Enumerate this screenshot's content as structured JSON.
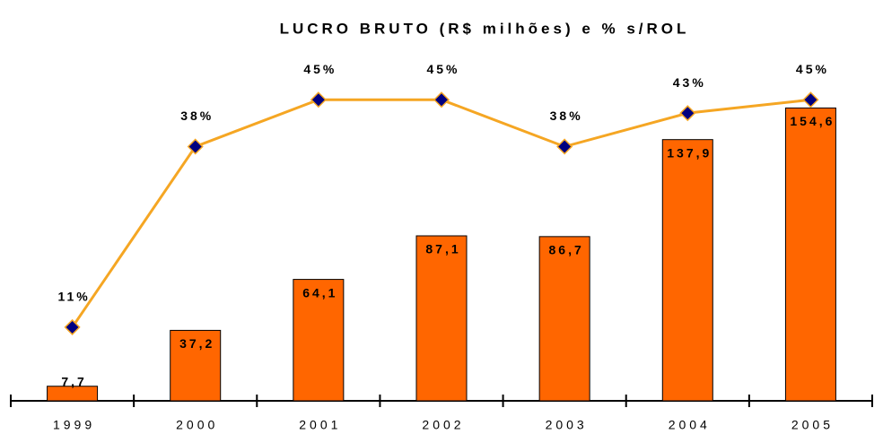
{
  "chart_data": {
    "type": "bar",
    "title": "LUCRO BRUTO (R$ milhões) e % s/ROL",
    "categories": [
      "1999",
      "2000",
      "2001",
      "2002",
      "2003",
      "2004",
      "2005"
    ],
    "ylim": [
      0,
      160
    ],
    "y2lim": [
      0,
      45.3
    ],
    "series": [
      {
        "name": "Lucro Bruto",
        "type": "bar",
        "color": "#ff6600",
        "values": [
          7.7,
          37.2,
          64.1,
          87.1,
          86.7,
          137.9,
          154.6
        ],
        "value_labels": [
          "7,7",
          "37,2",
          "64,1",
          "87,1",
          "86,7",
          "137,9",
          "154,6"
        ]
      },
      {
        "name": "% s/ROL",
        "type": "line",
        "axis": "y2",
        "color": "#f5a623",
        "marker_color": "#000080",
        "values": [
          11,
          38,
          45,
          45,
          38,
          43,
          45
        ],
        "value_labels": [
          "11%",
          "38%",
          "45%",
          "45%",
          "38%",
          "43%",
          "45%"
        ]
      }
    ]
  }
}
